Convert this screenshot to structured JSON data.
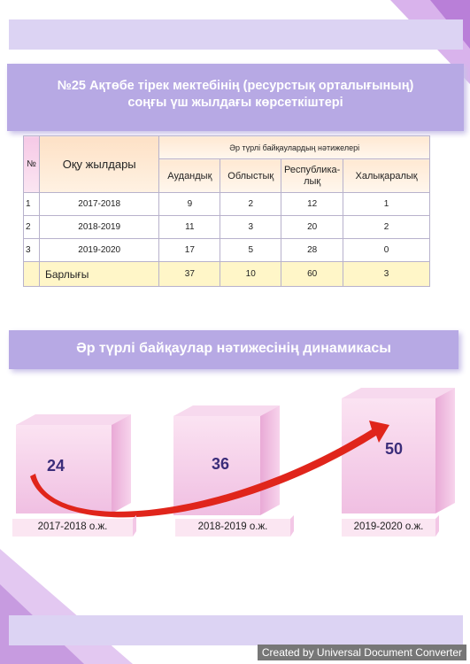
{
  "title": {
    "line1": "№25 Ақтөбе тірек мектебінің (ресурстық орталығының)",
    "line2": "соңғы үш жылдағы көрсеткіштері"
  },
  "table": {
    "col_no": "№",
    "col_years": "Оқу жылдары",
    "group_header": "Әр түрлі байқаулардың нәтижелері",
    "sub_headers": [
      "Аудандық",
      "Облыстық",
      "Республика-",
      "лық",
      "Халықаралық"
    ],
    "rows": [
      {
        "no": "1",
        "year": "2017-2018",
        "values": [
          "9",
          "2",
          "12",
          "1"
        ]
      },
      {
        "no": "2",
        "year": "2018-2019",
        "values": [
          "11",
          "3",
          "20",
          "2"
        ]
      },
      {
        "no": "3",
        "year": "2019-2020",
        "values": [
          "17",
          "5",
          "28",
          "0"
        ]
      }
    ],
    "total": {
      "label": "Барлығы",
      "values": [
        "37",
        "10",
        "60",
        "3"
      ]
    }
  },
  "dynamics": {
    "title": "Әр түрлі байқаулар нәтижесінің динамикасы",
    "items": [
      {
        "value": "24",
        "label": "2017-2018 о.ж."
      },
      {
        "value": "36",
        "label": "2018-2019 о.ж."
      },
      {
        "value": "50",
        "label": "2019-2020 о.ж."
      }
    ],
    "arrow_color": "#e0251b",
    "cube_color": "#f3c7e6"
  },
  "watermark": "Created by Universal Document Converter"
}
